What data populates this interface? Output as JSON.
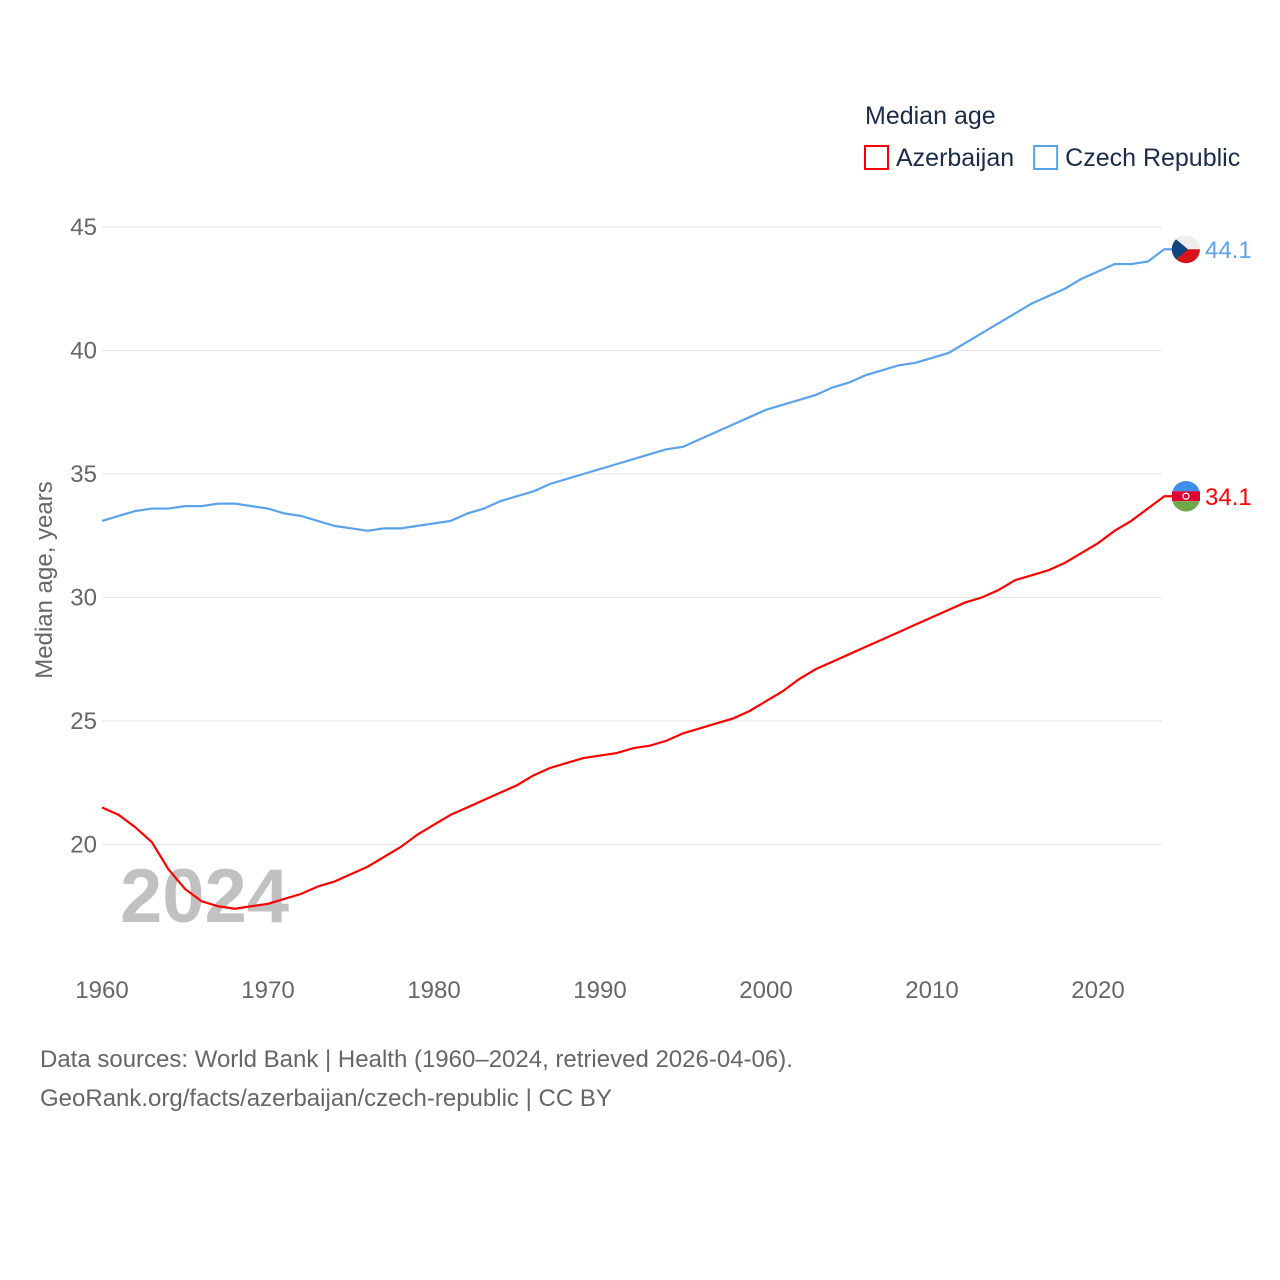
{
  "chart_data": {
    "type": "line",
    "title": "",
    "legend_title": "Median age",
    "legend_position": "top-right",
    "ylabel": "Median age, years",
    "xlabel": "",
    "ylim": [
      15.5,
      46
    ],
    "xlim": [
      1960,
      2024
    ],
    "yticks": [
      20,
      25,
      30,
      35,
      40,
      45
    ],
    "xticks": [
      1960,
      1970,
      1980,
      1990,
      2000,
      2010,
      2020
    ],
    "grid": true,
    "year_watermark": "2024",
    "x": [
      1960,
      1961,
      1962,
      1963,
      1964,
      1965,
      1966,
      1967,
      1968,
      1969,
      1970,
      1971,
      1972,
      1973,
      1974,
      1975,
      1976,
      1977,
      1978,
      1979,
      1980,
      1981,
      1982,
      1983,
      1984,
      1985,
      1986,
      1987,
      1988,
      1989,
      1990,
      1991,
      1992,
      1993,
      1994,
      1995,
      1996,
      1997,
      1998,
      1999,
      2000,
      2001,
      2002,
      2003,
      2004,
      2005,
      2006,
      2007,
      2008,
      2009,
      2010,
      2011,
      2012,
      2013,
      2014,
      2015,
      2016,
      2017,
      2018,
      2019,
      2020,
      2021,
      2022,
      2023,
      2024
    ],
    "series": [
      {
        "name": "Azerbaijan",
        "color": "#ff0000",
        "end_label": "34.1",
        "values": [
          21.5,
          21.2,
          20.7,
          20.1,
          19.0,
          18.2,
          17.7,
          17.5,
          17.4,
          17.5,
          17.6,
          17.8,
          18.0,
          18.3,
          18.5,
          18.8,
          19.1,
          19.5,
          19.9,
          20.4,
          20.8,
          21.2,
          21.5,
          21.8,
          22.1,
          22.4,
          22.8,
          23.1,
          23.3,
          23.5,
          23.6,
          23.7,
          23.9,
          24.0,
          24.2,
          24.5,
          24.7,
          24.9,
          25.1,
          25.4,
          25.8,
          26.2,
          26.7,
          27.1,
          27.4,
          27.7,
          28.0,
          28.3,
          28.6,
          28.9,
          29.2,
          29.5,
          29.8,
          30.0,
          30.3,
          30.7,
          30.9,
          31.1,
          31.4,
          31.8,
          32.2,
          32.7,
          33.1,
          33.6,
          34.1
        ]
      },
      {
        "name": "Czech Republic",
        "color": "#5ba3e8",
        "end_label": "44.1",
        "values": [
          33.1,
          33.3,
          33.5,
          33.6,
          33.6,
          33.7,
          33.7,
          33.8,
          33.8,
          33.7,
          33.6,
          33.4,
          33.3,
          33.1,
          32.9,
          32.8,
          32.7,
          32.8,
          32.8,
          32.9,
          33.0,
          33.1,
          33.4,
          33.6,
          33.9,
          34.1,
          34.3,
          34.6,
          34.8,
          35.0,
          35.2,
          35.4,
          35.6,
          35.8,
          36.0,
          36.1,
          36.4,
          36.7,
          37.0,
          37.3,
          37.6,
          37.8,
          38.0,
          38.2,
          38.5,
          38.7,
          39.0,
          39.2,
          39.4,
          39.5,
          39.7,
          39.9,
          40.3,
          40.7,
          41.1,
          41.5,
          41.9,
          42.2,
          42.5,
          42.9,
          43.2,
          43.5,
          43.5,
          43.6,
          44.1
        ]
      }
    ]
  },
  "footer": {
    "line1": "Data sources: World Bank | Health (1960–2024, retrieved 2026-04-06).",
    "line2": "GeoRank.org/facts/azerbaijan/czech-republic | CC BY"
  }
}
